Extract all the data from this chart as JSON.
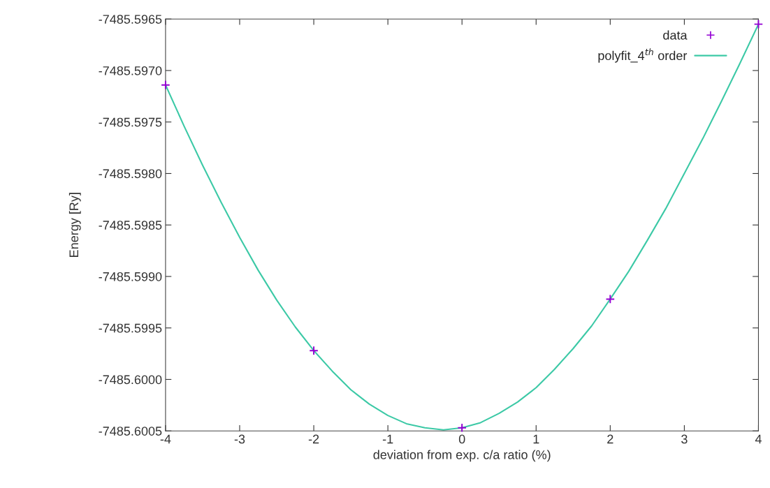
{
  "chart_data": {
    "type": "scatter",
    "xlabel": "deviation from exp. c/a ratio (%)",
    "ylabel": "Energy [Ry]",
    "xlim": [
      -4,
      4
    ],
    "xticks": [
      -4,
      -3,
      -2,
      -1,
      0,
      1,
      2,
      3,
      4
    ],
    "ylim": [
      -7485.6005,
      -7485.5965
    ],
    "yticks": [
      {
        "value": -7485.6005,
        "label": "-7485.6005"
      },
      {
        "value": -7485.6,
        "label": "-7485.6000"
      },
      {
        "value": -7485.5995,
        "label": "-7485.5995"
      },
      {
        "value": -7485.599,
        "label": "-7485.5990"
      },
      {
        "value": -7485.5985,
        "label": "-7485.5985"
      },
      {
        "value": -7485.598,
        "label": "-7485.5980"
      },
      {
        "value": -7485.5975,
        "label": "-7485.5975"
      },
      {
        "value": -7485.597,
        "label": "-7485.5970"
      },
      {
        "value": -7485.5965,
        "label": "-7485.5965"
      }
    ],
    "grid": false,
    "legend": "top right",
    "series": [
      {
        "name": "data",
        "marker": "cross",
        "color": "#9400d3",
        "x": [
          -4,
          -2,
          0,
          2,
          4
        ],
        "values": [
          -7485.59714,
          -7485.59972,
          -7485.60047,
          -7485.59922,
          -7485.59655
        ]
      },
      {
        "name": "polyfit_4$^{th}$ order",
        "type": "line",
        "marker": "none",
        "line_style": "solid",
        "color": "#3cc9a6",
        "x": [
          -4,
          -3.75,
          -3.5,
          -3.25,
          -3,
          -2.75,
          -2.5,
          -2.25,
          -2,
          -1.75,
          -1.5,
          -1.25,
          -1,
          -0.75,
          -0.5,
          -0.25,
          0,
          0.25,
          0.5,
          0.75,
          1,
          1.25,
          1.5,
          1.75,
          2,
          2.25,
          2.5,
          2.75,
          3,
          3.25,
          3.5,
          3.75,
          4
        ],
        "values": [
          -7485.59714,
          -7485.59754,
          -7485.59792,
          -7485.59828,
          -7485.59862,
          -7485.59894,
          -7485.59923,
          -7485.59949,
          -7485.59972,
          -7485.59992,
          -7485.6001,
          -7485.60024,
          -7485.60035,
          -7485.60043,
          -7485.60047,
          -7485.60049,
          -7485.60047,
          -7485.60042,
          -7485.60033,
          -7485.60022,
          -7485.60008,
          -7485.5999,
          -7485.5997,
          -7485.59948,
          -7485.59922,
          -7485.59895,
          -7485.59865,
          -7485.59834,
          -7485.598,
          -7485.59766,
          -7485.5973,
          -7485.59693,
          -7485.59655
        ]
      }
    ]
  }
}
